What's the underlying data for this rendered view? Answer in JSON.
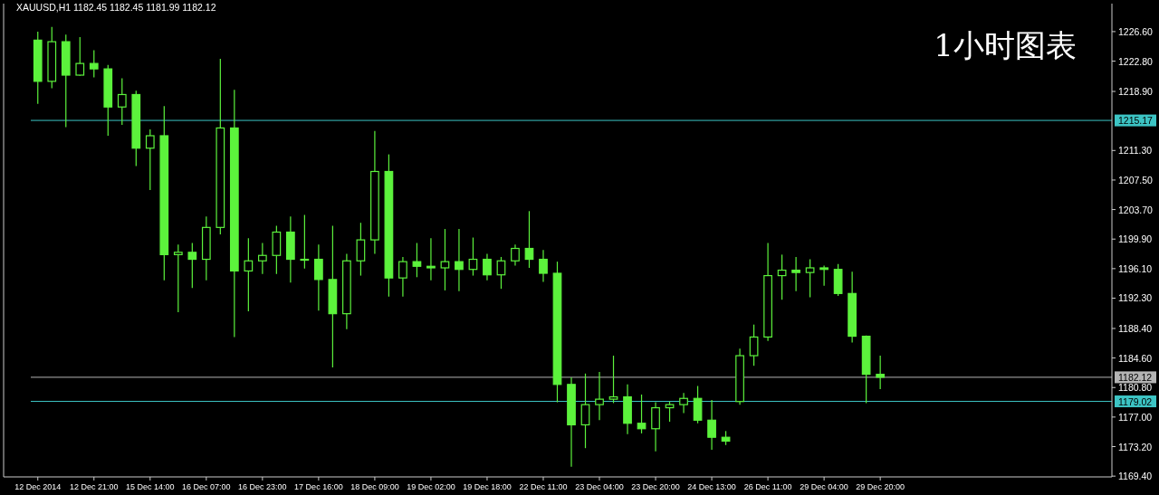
{
  "chart_data": {
    "type": "candlestick",
    "title": "XAUUSD,H1  1182.45 1182.45 1181.99 1182.12",
    "annotations": [
      "1小时图表"
    ],
    "color": "#5cf23c",
    "categories": [
      "12 Dec 2014",
      null,
      null,
      null,
      "12 Dec 21:00",
      null,
      null,
      null,
      "15 Dec 14:00",
      null,
      null,
      null,
      "16 Dec 07:00",
      null,
      null,
      null,
      "16 Dec 23:00",
      null,
      null,
      null,
      "17 Dec 16:00",
      null,
      null,
      null,
      "18 Dec 09:00",
      null,
      null,
      null,
      "19 Dec 02:00",
      null,
      null,
      null,
      "19 Dec 18:00",
      null,
      null,
      null,
      "22 Dec 11:00",
      null,
      null,
      null,
      "23 Dec 04:00",
      null,
      null,
      null,
      "23 Dec 20:00",
      null,
      null,
      null,
      "24 Dec 13:00",
      null,
      null,
      null,
      "26 Dec 11:00",
      null,
      null,
      null,
      "29 Dec 04:00",
      null,
      null,
      null,
      "29 Dec 20:00",
      null,
      null,
      null,
      null,
      null,
      null,
      null,
      null,
      null,
      null,
      null,
      null,
      null,
      null,
      null,
      null
    ],
    "ohlc": [
      [
        1225.5,
        1226.6,
        1217.3,
        1220.2
      ],
      [
        1220.2,
        1227.2,
        1219.3,
        1225.3
      ],
      [
        1225.3,
        1226.2,
        1214.3,
        1221.0
      ],
      [
        1221.0,
        1225.9,
        1220.9,
        1222.5
      ],
      [
        1222.5,
        1224.2,
        1220.7,
        1221.8
      ],
      [
        1221.8,
        1222.3,
        1213.2,
        1216.9
      ],
      [
        1216.9,
        1220.6,
        1214.6,
        1218.5
      ],
      [
        1218.5,
        1219.0,
        1209.3,
        1211.6
      ],
      [
        1211.6,
        1214.0,
        1206.2,
        1213.2
      ],
      [
        1213.2,
        1217.0,
        1194.6,
        1197.9
      ],
      [
        1197.9,
        1199.2,
        1190.5,
        1198.2
      ],
      [
        1198.2,
        1199.4,
        1193.6,
        1197.3
      ],
      [
        1197.3,
        1202.8,
        1194.6,
        1201.4
      ],
      [
        1201.4,
        1223.1,
        1200.5,
        1214.2
      ],
      [
        1214.2,
        1219.1,
        1187.3,
        1195.8
      ],
      [
        1195.8,
        1200.0,
        1190.6,
        1197.1
      ],
      [
        1197.1,
        1199.4,
        1195.4,
        1197.8
      ],
      [
        1197.8,
        1201.6,
        1195.4,
        1200.8
      ],
      [
        1200.8,
        1202.8,
        1194.3,
        1197.3
      ],
      [
        1197.3,
        1203.0,
        1196.1,
        1197.3
      ],
      [
        1197.3,
        1199.2,
        1190.7,
        1194.7
      ],
      [
        1194.7,
        1201.6,
        1183.4,
        1190.3
      ],
      [
        1190.3,
        1198.0,
        1188.3,
        1197.1
      ],
      [
        1197.1,
        1202.0,
        1195.2,
        1199.8
      ],
      [
        1199.8,
        1213.8,
        1198.0,
        1208.6
      ],
      [
        1208.6,
        1210.8,
        1192.5,
        1194.9
      ],
      [
        1194.9,
        1197.6,
        1192.5,
        1197.0
      ],
      [
        1197.0,
        1199.4,
        1195.0,
        1196.4
      ],
      [
        1196.4,
        1200.0,
        1194.6,
        1196.2
      ],
      [
        1196.2,
        1201.2,
        1193.3,
        1197.0
      ],
      [
        1197.0,
        1201.2,
        1193.2,
        1196.0
      ],
      [
        1196.0,
        1200.1,
        1195.2,
        1197.3
      ],
      [
        1197.3,
        1198.0,
        1194.6,
        1195.3
      ],
      [
        1195.3,
        1197.6,
        1193.5,
        1197.1
      ],
      [
        1197.1,
        1199.2,
        1196.5,
        1198.7
      ],
      [
        1198.7,
        1203.5,
        1196.2,
        1197.3
      ],
      [
        1197.3,
        1198.5,
        1194.4,
        1195.5
      ],
      [
        1195.5,
        1197.0,
        1178.9,
        1181.2
      ],
      [
        1181.2,
        1182.1,
        1170.6,
        1176.0
      ],
      [
        1176.0,
        1182.6,
        1173.0,
        1178.6
      ],
      [
        1178.6,
        1182.8,
        1176.6,
        1179.3
      ],
      [
        1179.3,
        1184.9,
        1178.8,
        1179.6
      ],
      [
        1179.6,
        1181.2,
        1174.8,
        1176.2
      ],
      [
        1176.2,
        1179.9,
        1174.9,
        1175.5
      ],
      [
        1175.5,
        1178.9,
        1172.6,
        1178.2
      ],
      [
        1178.2,
        1179.0,
        1176.4,
        1178.6
      ],
      [
        1178.6,
        1180.1,
        1177.5,
        1179.4
      ],
      [
        1179.4,
        1181.0,
        1176.2,
        1176.6
      ],
      [
        1176.6,
        1179.2,
        1172.8,
        1174.4
      ],
      [
        1174.4,
        1175.2,
        1173.4,
        1173.9
      ],
      [
        1179.0,
        1185.8,
        1178.6,
        1184.9
      ],
      [
        1184.9,
        1188.9,
        1183.6,
        1187.3
      ],
      [
        1187.3,
        1199.4,
        1186.8,
        1195.2
      ],
      [
        1195.2,
        1197.9,
        1192.1,
        1195.9
      ],
      [
        1195.9,
        1197.6,
        1193.2,
        1195.6
      ],
      [
        1195.6,
        1197.3,
        1192.4,
        1196.2
      ],
      [
        1196.2,
        1196.5,
        1193.9,
        1196.0
      ],
      [
        1196.0,
        1196.7,
        1192.6,
        1192.9
      ],
      [
        1192.9,
        1195.7,
        1186.6,
        1187.4
      ],
      [
        1187.4,
        1187.5,
        1178.8,
        1182.5
      ],
      [
        1182.5,
        1184.9,
        1180.6,
        1182.12
      ],
      null,
      null,
      null,
      null,
      null,
      null,
      null,
      null,
      null,
      null,
      null,
      null,
      null,
      null,
      null,
      null
    ],
    "ylim": [
      1169.3,
      1230.2
    ],
    "yticks": [
      {
        "value": 1169.4,
        "label": "1169.40"
      },
      {
        "value": 1173.2,
        "label": "1173.20"
      },
      {
        "value": 1177.0,
        "label": "1177.00"
      },
      {
        "value": 1180.8,
        "label": "1180.80"
      },
      {
        "value": 1184.6,
        "label": "1184.60"
      },
      {
        "value": 1188.4,
        "label": "1188.40"
      },
      {
        "value": 1192.3,
        "label": "1192.30"
      },
      {
        "value": 1196.1,
        "label": "1196.10"
      },
      {
        "value": 1199.9,
        "label": "1199.90"
      },
      {
        "value": 1203.7,
        "label": "1203.70"
      },
      {
        "value": 1207.5,
        "label": "1207.50"
      },
      {
        "value": 1211.3,
        "label": "1211.30"
      },
      {
        "value": 1218.9,
        "label": "1218.90"
      },
      {
        "value": 1222.8,
        "label": "1222.80"
      },
      {
        "value": 1226.6,
        "label": "1226.60"
      }
    ],
    "ref_lines": [
      {
        "axis": "y",
        "value": 1215.17,
        "label": "1215.17",
        "color": "#3cc4c4"
      },
      {
        "axis": "y",
        "value": 1182.12,
        "label": "1182.12",
        "color": "#b4b4b4"
      },
      {
        "axis": "y",
        "value": 1179.02,
        "label": "1179.02",
        "color": "#3cc4c4"
      }
    ],
    "grid": false
  }
}
